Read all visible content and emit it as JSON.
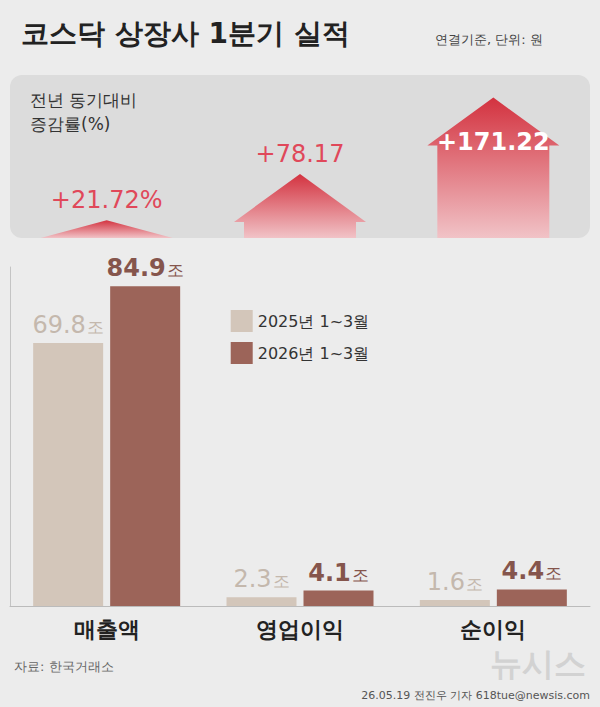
{
  "chart_data": {
    "type": "bar",
    "title": "코스닥 상장사 1분기 실적",
    "subtitle": "연결기준, 단위: 원",
    "categories": [
      "매출액",
      "영업이익",
      "순이익"
    ],
    "series": [
      {
        "name": "2025년 1~3월",
        "color": "#d3c6ba",
        "values": [
          69.8,
          2.3,
          1.6
        ],
        "value_labels": [
          "69.8조",
          "2.3조",
          "1.6조"
        ]
      },
      {
        "name": "2026년 1~3월",
        "color": "#9c6459",
        "values": [
          84.9,
          4.1,
          4.4
        ],
        "value_labels": [
          "84.9조",
          "4.1조",
          "4.4조"
        ]
      }
    ],
    "ylim": [
      0,
      90
    ],
    "yticks": [
      0
    ],
    "grid": false,
    "tick_labels": "x",
    "data_labels": true,
    "legend": "upper center",
    "growth": {
      "title": "전년 동기대비\n증감률(%)",
      "values": [
        21.72,
        78.17,
        171.22
      ],
      "value_labels": [
        "+21.72%",
        "+78.17",
        "+171.22"
      ]
    },
    "source": "자료: 한국거래소",
    "credit": "26.05.19 전진우 기자 618tue@newsis.com",
    "watermark": "뉴시스"
  }
}
